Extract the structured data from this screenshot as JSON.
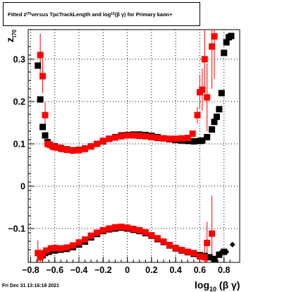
{
  "title_parts": {
    "a": "Fitted  z",
    "sub1": "I70",
    "b": "  versus TpcTrackLength and log",
    "sub2": "10",
    "c": " (β  γ) for Primary kaon+"
  },
  "timestamp": "Fri Dec 31 13:16:18 2021",
  "axes": {
    "xlabel_main": "log",
    "xlabel_sub": "10",
    "xlabel_tail": " (β γ)",
    "ylabel_main": "z",
    "ylabel_sub": "I70"
  },
  "chart_data": {
    "type": "scatter",
    "xlim": [
      -0.82,
      0.93
    ],
    "ylim": [
      -0.18,
      0.37
    ],
    "xticks": [
      "−0.8",
      "−0.6",
      "−0.4",
      "−0.2",
      "0",
      "0.2",
      "0.4",
      "0.6",
      "0.8"
    ],
    "xtick_values": [
      -0.8,
      -0.6,
      -0.4,
      -0.2,
      0,
      0.2,
      0.4,
      0.6,
      0.8
    ],
    "yticks": [
      "−0.1",
      "0",
      "0.1",
      "0.2",
      "0.3"
    ],
    "ytick_values": [
      -0.1,
      0,
      0.1,
      0.2,
      0.3
    ],
    "grid": true,
    "colors": {
      "series_black": "#000000",
      "series_red": "#ff0000"
    },
    "series": [
      {
        "marker": "square",
        "color": "#000000",
        "points": [
          [
            -0.74,
            0.285,
            0.0
          ],
          [
            -0.72,
            0.205,
            0.0
          ],
          [
            -0.7,
            0.14,
            0.0
          ],
          [
            -0.68,
            0.12,
            0.0
          ],
          [
            -0.66,
            0.104,
            0.0
          ],
          [
            -0.64,
            0.098,
            0.0
          ],
          [
            -0.6,
            0.094,
            0.0
          ],
          [
            -0.55,
            0.09,
            0.0
          ],
          [
            -0.5,
            0.087,
            0.0
          ],
          [
            -0.45,
            0.085,
            0.0
          ],
          [
            -0.4,
            0.086,
            0.0
          ],
          [
            -0.35,
            0.089,
            0.0
          ],
          [
            -0.3,
            0.094,
            0.0
          ],
          [
            -0.25,
            0.1,
            0.0
          ],
          [
            -0.2,
            0.106,
            0.0
          ],
          [
            -0.15,
            0.112,
            0.0
          ],
          [
            -0.1,
            0.116,
            0.0
          ],
          [
            -0.05,
            0.12,
            0.0
          ],
          [
            0.0,
            0.121,
            0.0
          ],
          [
            0.05,
            0.122,
            0.0
          ],
          [
            0.1,
            0.122,
            0.0
          ],
          [
            0.15,
            0.121,
            0.0
          ],
          [
            0.2,
            0.119,
            0.0
          ],
          [
            0.25,
            0.116,
            0.0
          ],
          [
            0.3,
            0.113,
            0.0
          ],
          [
            0.35,
            0.111,
            0.0
          ],
          [
            0.4,
            0.109,
            0.0
          ],
          [
            0.45,
            0.108,
            0.0
          ],
          [
            0.5,
            0.107,
            0.0
          ],
          [
            0.55,
            0.106,
            0.0
          ],
          [
            0.6,
            0.107,
            0.0
          ],
          [
            0.62,
            0.108,
            0.0
          ],
          [
            0.66,
            0.116,
            0.0
          ],
          [
            0.7,
            0.134,
            0.0
          ],
          [
            0.72,
            0.152,
            0.0
          ],
          [
            0.74,
            0.164,
            0.0
          ],
          [
            0.76,
            0.182,
            0.0
          ],
          [
            0.78,
            0.22,
            0.0
          ],
          [
            0.8,
            0.315,
            0.0
          ],
          [
            0.82,
            0.34,
            0.0
          ],
          [
            0.84,
            0.352,
            0.0
          ],
          [
            0.86,
            0.355,
            0.0
          ]
        ]
      },
      {
        "marker": "square",
        "color": "#ff0000",
        "points": [
          [
            -0.72,
            0.31,
            0.05
          ],
          [
            -0.7,
            0.26,
            0.04
          ],
          [
            -0.68,
            0.168,
            0.03
          ],
          [
            -0.66,
            0.1,
            0.0
          ],
          [
            -0.64,
            0.098,
            0.0
          ],
          [
            -0.62,
            0.094,
            0.0
          ],
          [
            -0.6,
            0.092,
            0.0
          ],
          [
            -0.57,
            0.091,
            0.0
          ],
          [
            -0.54,
            0.088,
            0.0
          ],
          [
            -0.5,
            0.086,
            0.0
          ],
          [
            -0.45,
            0.084,
            0.0
          ],
          [
            -0.4,
            0.085,
            0.0
          ],
          [
            -0.35,
            0.088,
            0.0
          ],
          [
            -0.3,
            0.094,
            0.0
          ],
          [
            -0.25,
            0.1,
            0.0
          ],
          [
            -0.2,
            0.107,
            0.0
          ],
          [
            -0.15,
            0.112,
            0.0
          ],
          [
            -0.1,
            0.115,
            0.0
          ],
          [
            -0.05,
            0.118,
            0.0
          ],
          [
            0.0,
            0.12,
            0.0
          ],
          [
            0.05,
            0.12,
            0.0
          ],
          [
            0.1,
            0.119,
            0.0
          ],
          [
            0.15,
            0.118,
            0.0
          ],
          [
            0.2,
            0.116,
            0.0
          ],
          [
            0.25,
            0.114,
            0.0
          ],
          [
            0.3,
            0.113,
            0.0
          ],
          [
            0.35,
            0.112,
            0.0
          ],
          [
            0.4,
            0.112,
            0.0
          ],
          [
            0.45,
            0.113,
            0.0
          ],
          [
            0.5,
            0.114,
            0.0
          ],
          [
            0.54,
            0.124,
            0.0
          ],
          [
            0.58,
            0.168,
            0.02
          ],
          [
            0.6,
            0.222,
            0.04
          ],
          [
            0.62,
            0.228,
            0.05
          ],
          [
            0.64,
            0.3,
            0.08
          ],
          [
            0.66,
            0.21,
            0.08
          ],
          [
            0.7,
            0.33,
            0.1
          ],
          [
            0.72,
            0.354,
            0.1
          ]
        ]
      },
      {
        "marker": "square",
        "color": "#000000",
        "points": [
          [
            -0.72,
            -0.165,
            0.0
          ],
          [
            -0.7,
            -0.163,
            0.0
          ],
          [
            -0.68,
            -0.158,
            0.0
          ],
          [
            -0.65,
            -0.155,
            0.0
          ],
          [
            -0.6,
            -0.152,
            0.0
          ],
          [
            -0.55,
            -0.15,
            0.0
          ],
          [
            -0.5,
            -0.148,
            0.0
          ],
          [
            -0.45,
            -0.144,
            0.0
          ],
          [
            -0.4,
            -0.138,
            0.0
          ],
          [
            -0.35,
            -0.131,
            0.0
          ],
          [
            -0.3,
            -0.121,
            0.0
          ],
          [
            -0.25,
            -0.113,
            0.0
          ],
          [
            -0.2,
            -0.106,
            0.0
          ],
          [
            -0.15,
            -0.102,
            0.0
          ],
          [
            -0.1,
            -0.1,
            0.0
          ],
          [
            -0.05,
            -0.098,
            0.0
          ],
          [
            0.0,
            -0.1,
            0.0
          ],
          [
            0.05,
            -0.103,
            0.0
          ],
          [
            0.1,
            -0.106,
            0.0
          ],
          [
            0.15,
            -0.111,
            0.0
          ],
          [
            0.2,
            -0.117,
            0.0
          ],
          [
            0.25,
            -0.125,
            0.0
          ],
          [
            0.3,
            -0.132,
            0.0
          ],
          [
            0.35,
            -0.14,
            0.0
          ],
          [
            0.4,
            -0.147,
            0.0
          ],
          [
            0.45,
            -0.152,
            0.0
          ],
          [
            0.5,
            -0.156,
            0.0
          ],
          [
            0.55,
            -0.16,
            0.0
          ],
          [
            0.6,
            -0.163,
            0.0
          ],
          [
            0.64,
            -0.165,
            0.0
          ],
          [
            0.68,
            -0.168,
            0.0
          ],
          [
            0.72,
            -0.172,
            0.0
          ],
          [
            0.76,
            -0.162,
            0.0
          ],
          [
            0.8,
            -0.155,
            0.0
          ]
        ]
      },
      {
        "marker": "square",
        "color": "#ff0000",
        "points": [
          [
            -0.74,
            -0.158,
            0.03
          ],
          [
            -0.72,
            -0.168,
            0.02
          ],
          [
            -0.7,
            -0.16,
            0.0
          ],
          [
            -0.67,
            -0.152,
            0.0
          ],
          [
            -0.63,
            -0.147,
            0.0
          ],
          [
            -0.6,
            -0.146,
            0.0
          ],
          [
            -0.55,
            -0.147,
            0.0
          ],
          [
            -0.5,
            -0.145,
            0.0
          ],
          [
            -0.45,
            -0.14,
            0.0
          ],
          [
            -0.4,
            -0.133,
            0.0
          ],
          [
            -0.35,
            -0.126,
            0.0
          ],
          [
            -0.3,
            -0.117,
            0.0
          ],
          [
            -0.25,
            -0.11,
            0.0
          ],
          [
            -0.2,
            -0.104,
            0.0
          ],
          [
            -0.15,
            -0.1,
            0.0
          ],
          [
            -0.1,
            -0.097,
            0.0
          ],
          [
            -0.05,
            -0.096,
            0.0
          ],
          [
            0.0,
            -0.098,
            0.0
          ],
          [
            0.05,
            -0.101,
            0.0
          ],
          [
            0.1,
            -0.104,
            0.0
          ],
          [
            0.15,
            -0.109,
            0.0
          ],
          [
            0.2,
            -0.116,
            0.0
          ],
          [
            0.25,
            -0.123,
            0.0
          ],
          [
            0.3,
            -0.131,
            0.0
          ],
          [
            0.35,
            -0.139,
            0.0
          ],
          [
            0.4,
            -0.146,
            0.0
          ],
          [
            0.45,
            -0.151,
            0.0
          ],
          [
            0.5,
            -0.155,
            0.0
          ],
          [
            0.55,
            -0.158,
            0.0
          ],
          [
            0.6,
            -0.166,
            0.0
          ],
          [
            0.64,
            -0.168,
            0.03
          ],
          [
            0.66,
            -0.134,
            0.05
          ],
          [
            0.7,
            -0.112,
            0.09
          ]
        ]
      },
      {
        "marker": "diamond",
        "color": "#000000",
        "points": [
          [
            0.77,
            -0.158,
            0.0
          ],
          [
            0.82,
            -0.155,
            0.0
          ],
          [
            0.87,
            -0.138,
            0.0
          ]
        ]
      }
    ]
  }
}
